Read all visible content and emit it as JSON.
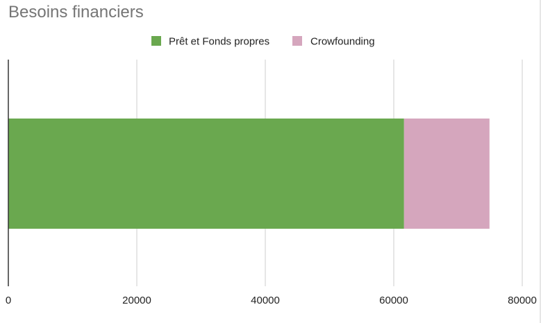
{
  "chart_data": {
    "type": "bar",
    "orientation": "horizontal",
    "stacked": true,
    "title": "Besoins financiers",
    "xlabel": "",
    "ylabel": "",
    "categories": [
      ""
    ],
    "series": [
      {
        "name": "Prêt et Fonds propres",
        "values": [
          61600
        ],
        "color": "#6aa84f"
      },
      {
        "name": "Crowfounding",
        "values": [
          13300
        ],
        "color": "#d5a6bd"
      }
    ],
    "xlim": [
      0,
      80000
    ],
    "xticks": [
      "0",
      "20000",
      "40000",
      "60000",
      "80000"
    ],
    "grid": true,
    "legend_position": "top-center"
  }
}
